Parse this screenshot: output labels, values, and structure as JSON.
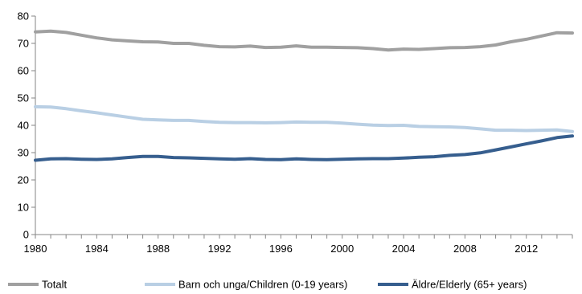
{
  "chart_data": {
    "type": "line",
    "title": "",
    "xlabel": "",
    "ylabel": "",
    "ylim": [
      0,
      80
    ],
    "y_ticks": [
      0,
      10,
      20,
      30,
      40,
      50,
      60,
      70,
      80
    ],
    "xlim": [
      1980,
      2015
    ],
    "x_ticks": [
      1980,
      1984,
      1988,
      1992,
      1996,
      2000,
      2004,
      2008,
      2012
    ],
    "grid": false,
    "legend_position": "bottom",
    "x": [
      1980,
      1981,
      1982,
      1983,
      1984,
      1985,
      1986,
      1987,
      1988,
      1989,
      1990,
      1991,
      1992,
      1993,
      1994,
      1995,
      1996,
      1997,
      1998,
      1999,
      2000,
      2001,
      2002,
      2003,
      2004,
      2005,
      2006,
      2007,
      2008,
      2009,
      2010,
      2011,
      2012,
      2013,
      2014,
      2015
    ],
    "series": [
      {
        "name": "Totalt",
        "color": "#a0a0a0",
        "values": [
          74.2,
          74.5,
          74.0,
          73.0,
          72.0,
          71.3,
          70.9,
          70.6,
          70.5,
          70.0,
          70.0,
          69.3,
          68.8,
          68.7,
          69.0,
          68.5,
          68.6,
          69.1,
          68.6,
          68.6,
          68.5,
          68.4,
          68.1,
          67.6,
          67.9,
          67.8,
          68.1,
          68.4,
          68.5,
          68.8,
          69.4,
          70.6,
          71.5,
          72.7,
          73.9,
          73.8
        ]
      },
      {
        "name": "Barn och unga/Children (0-19 years)",
        "color": "#b9cfe4",
        "values": [
          46.8,
          46.7,
          46.1,
          45.3,
          44.6,
          43.8,
          43.0,
          42.2,
          42.0,
          41.8,
          41.8,
          41.4,
          41.1,
          41.0,
          41.0,
          40.9,
          41.0,
          41.2,
          41.1,
          41.1,
          40.8,
          40.4,
          40.1,
          39.9,
          40.0,
          39.6,
          39.5,
          39.4,
          39.2,
          38.7,
          38.2,
          38.2,
          38.1,
          38.2,
          38.3,
          37.7
        ]
      },
      {
        "name": "Äldre/Elderly (65+ years)",
        "color": "#365e8e",
        "values": [
          27.2,
          27.7,
          27.8,
          27.6,
          27.5,
          27.7,
          28.2,
          28.6,
          28.6,
          28.2,
          28.1,
          27.9,
          27.7,
          27.6,
          27.8,
          27.5,
          27.4,
          27.7,
          27.5,
          27.4,
          27.6,
          27.7,
          27.8,
          27.8,
          28.0,
          28.3,
          28.5,
          29.0,
          29.3,
          29.9,
          31.0,
          32.1,
          33.2,
          34.3,
          35.5,
          36.1
        ]
      }
    ]
  }
}
